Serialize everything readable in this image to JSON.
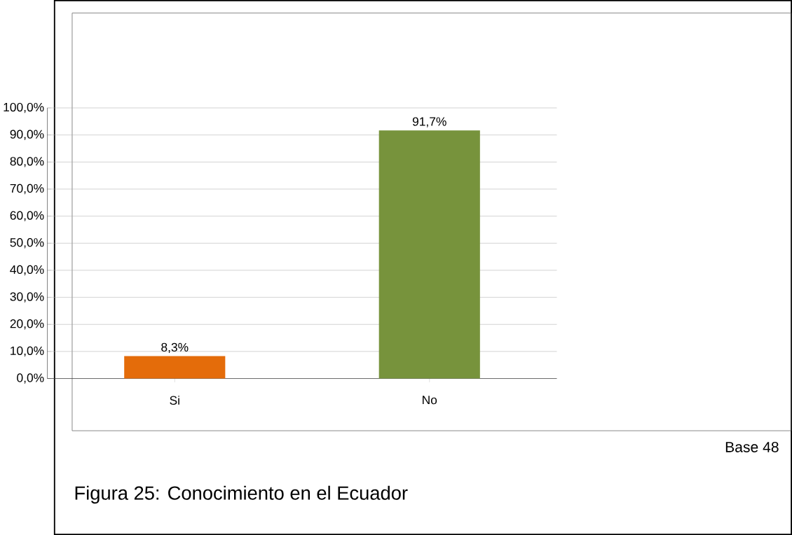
{
  "chart_data": {
    "type": "bar",
    "categories": [
      "Si",
      "No"
    ],
    "values": [
      8.3,
      91.7
    ],
    "colors": [
      "#e46c0a",
      "#77933c"
    ],
    "value_labels": [
      "8,3%",
      "91,7%"
    ],
    "ylim": [
      0,
      100
    ],
    "yticks": [
      {
        "value": 0,
        "label": "0,0%"
      },
      {
        "value": 10,
        "label": "10,0%"
      },
      {
        "value": 20,
        "label": "20,0%"
      },
      {
        "value": 30,
        "label": "30,0%"
      },
      {
        "value": 40,
        "label": "40,0%"
      },
      {
        "value": 50,
        "label": "50,0%"
      },
      {
        "value": 60,
        "label": "60,0%"
      },
      {
        "value": 70,
        "label": "70,0%"
      },
      {
        "value": 80,
        "label": "80,0%"
      },
      {
        "value": 90,
        "label": "90,0%"
      },
      {
        "value": 100,
        "label": "100,0%"
      }
    ],
    "grid": "y",
    "annotations": [
      "Base 48",
      "Figura 25: Conocimiento en el Ecuador"
    ]
  }
}
